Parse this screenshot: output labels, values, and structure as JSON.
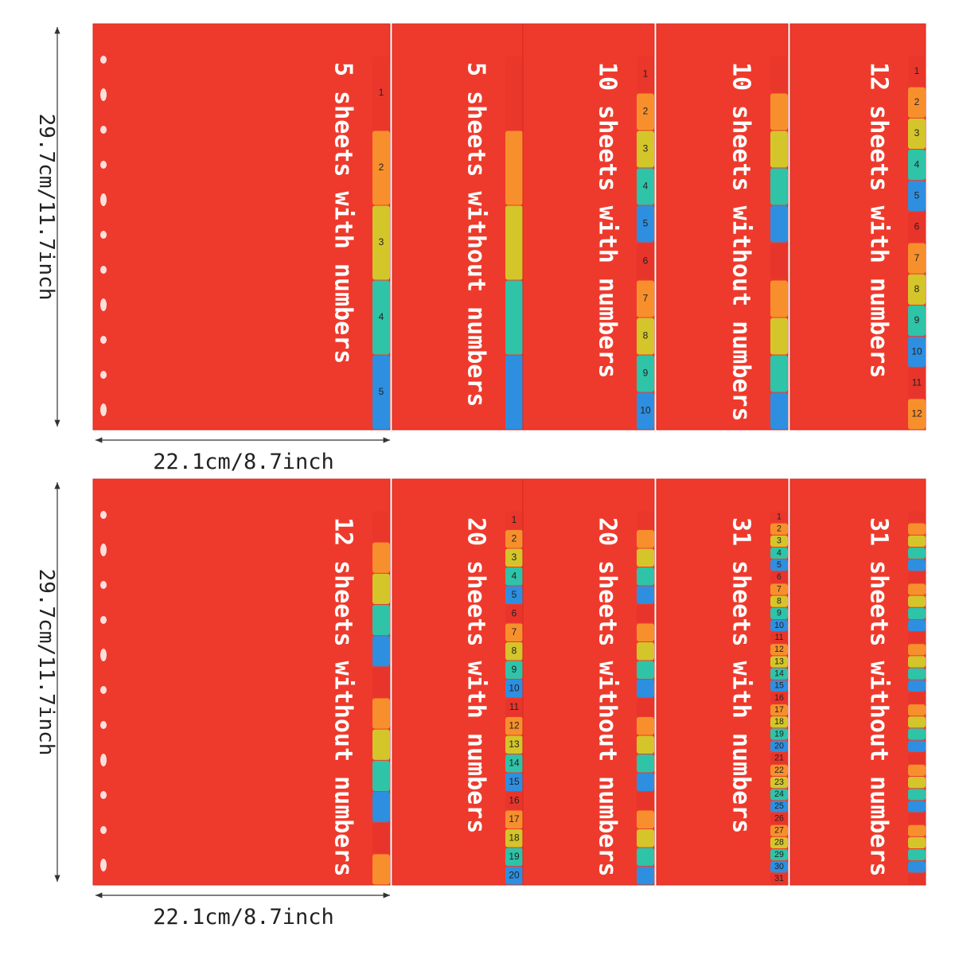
{
  "dimensions": {
    "height": "29.7cm/11.7inch",
    "width": "22.1cm/8.7inch"
  },
  "rows": [
    {
      "panels": [
        {
          "label": "5 sheets with numbers",
          "tabs": [
            "1",
            "2",
            "3",
            "4",
            "5"
          ]
        },
        {
          "label": "5 sheets without numbers"
        },
        {
          "label": "10 sheets with numbers",
          "tabs": [
            "1",
            "2",
            "3",
            "4",
            "5",
            "6",
            "7",
            "8",
            "9",
            "10"
          ]
        },
        {
          "label": "10 sheets without numbers"
        },
        {
          "label": "12 sheets with numbers",
          "tabs": [
            "1",
            "2",
            "3",
            "4",
            "5",
            "6",
            "7",
            "8",
            "9",
            "10",
            "11",
            "12"
          ]
        }
      ]
    },
    {
      "panels": [
        {
          "label": "12 sheets without numbers"
        },
        {
          "label": "20 sheets with numbers",
          "tabs": [
            "1",
            "2",
            "3",
            "4",
            "5",
            "6",
            "7",
            "8",
            "9",
            "10",
            "11",
            "12",
            "13",
            "14",
            "15",
            "16",
            "17",
            "18",
            "19",
            "20"
          ]
        },
        {
          "label": "20 sheets without numbers"
        },
        {
          "label": "31 sheets with numbers",
          "tabs": [
            "1",
            "2",
            "3",
            "4",
            "5",
            "6",
            "7",
            "8",
            "9",
            "10",
            "11",
            "12",
            "13",
            "14",
            "15",
            "16",
            "17",
            "18",
            "19",
            "20",
            "21",
            "22",
            "23",
            "24",
            "25",
            "26",
            "27",
            "28",
            "29",
            "30",
            "31"
          ]
        },
        {
          "label": "31 sheets without numbers"
        }
      ]
    }
  ]
}
